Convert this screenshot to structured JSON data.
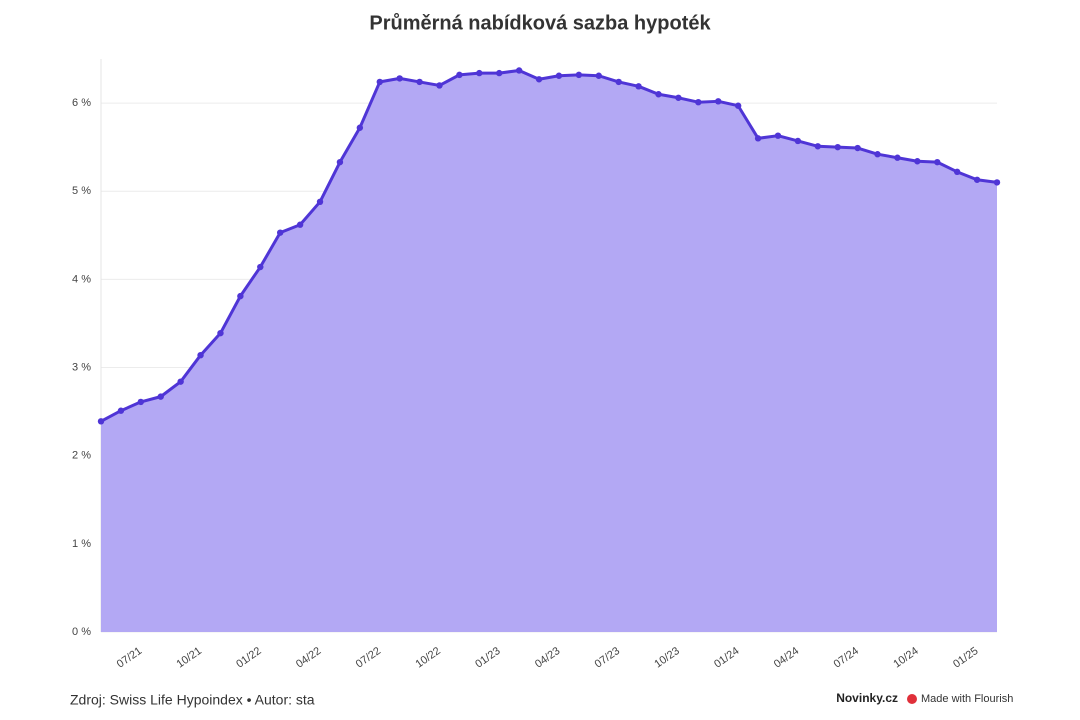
{
  "chart_data": {
    "type": "area",
    "title": "Průměrná nabídková sazba hypoték",
    "source": "Zdroj: Swiss Life Hypoindex • Autor: sta",
    "brand": "Novinky.cz",
    "credit": "Made with Flourish",
    "categories": [
      null,
      null,
      "07/21",
      null,
      null,
      "10/21",
      null,
      null,
      "01/22",
      null,
      null,
      "04/22",
      null,
      null,
      "07/22",
      null,
      null,
      "10/22",
      null,
      null,
      "01/23",
      null,
      null,
      "04/23",
      null,
      null,
      "07/23",
      null,
      null,
      "10/23",
      null,
      null,
      "01/24",
      null,
      null,
      "04/24",
      null,
      null,
      "07/24",
      null,
      null,
      "10/24",
      null,
      null,
      "01/25",
      null
    ],
    "series": [
      {
        "color": "#4f35d6",
        "fill": "#b3a8f4",
        "values": [
          2.39,
          2.51,
          2.61,
          2.67,
          2.84,
          3.14,
          3.39,
          3.81,
          4.14,
          4.53,
          4.62,
          4.88,
          5.33,
          5.72,
          6.24,
          6.28,
          6.24,
          6.2,
          6.32,
          6.34,
          6.34,
          6.37,
          6.27,
          6.31,
          6.32,
          6.31,
          6.24,
          6.19,
          6.1,
          6.06,
          6.01,
          6.02,
          5.97,
          5.6,
          5.63,
          5.57,
          5.51,
          5.5,
          5.49,
          5.42,
          5.38,
          5.34,
          5.33,
          5.22,
          5.13,
          5.1
        ]
      }
    ],
    "ylim": [
      0,
      6.5
    ],
    "yticks": [
      {
        "value": 0,
        "label": "0 %"
      },
      {
        "value": 1,
        "label": "1 %"
      },
      {
        "value": 2,
        "label": "2 %"
      },
      {
        "value": 3,
        "label": "3 %"
      },
      {
        "value": 4,
        "label": "4 %"
      },
      {
        "value": 5,
        "label": "5 %"
      },
      {
        "value": 6,
        "label": "6 %"
      }
    ],
    "grid": true
  }
}
